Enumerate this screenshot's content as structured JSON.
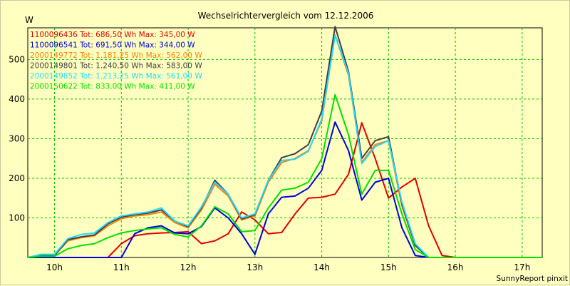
{
  "chart_data": {
    "type": "line",
    "title": "Wechselrichtervergleich vom 12.12.2006",
    "ylabel": "W",
    "xlabel": "",
    "ylim": [
      0,
      580
    ],
    "xlim": [
      9.6,
      17.3
    ],
    "yticks": [
      100,
      200,
      300,
      400,
      500
    ],
    "xticks": [
      10,
      11,
      12,
      13,
      14,
      15,
      16,
      17
    ],
    "xtick_labels": [
      "10h",
      "11h",
      "12h",
      "13h",
      "14h",
      "15h",
      "16h",
      "17h"
    ],
    "grid": true,
    "legend_position": "top-left",
    "footer": "SunnyReport pinxit",
    "series": [
      {
        "name": "1100096436",
        "label": "1100096436 Tot: 686,50 Wh Max: 345,00 W",
        "color": "#e00000",
        "x": [
          9.6,
          9.8,
          10.0,
          10.2,
          10.4,
          10.6,
          10.8,
          11.0,
          11.2,
          11.4,
          11.6,
          11.8,
          12.0,
          12.2,
          12.4,
          12.6,
          12.8,
          13.0,
          13.2,
          13.4,
          13.6,
          13.8,
          14.0,
          14.2,
          14.4,
          14.6,
          14.8,
          15.0,
          15.2,
          15.4,
          15.6,
          15.8,
          16.0,
          16.2,
          16.4,
          16.6,
          16.8,
          17.0,
          17.2,
          17.3
        ],
        "y": [
          0,
          0,
          0,
          0,
          0,
          0,
          0,
          35,
          55,
          60,
          62,
          63,
          65,
          35,
          42,
          60,
          115,
          95,
          60,
          63,
          110,
          150,
          152,
          160,
          210,
          340,
          250,
          150,
          178,
          200,
          80,
          5,
          0,
          0,
          0,
          0,
          0,
          0,
          0,
          0
        ]
      },
      {
        "name": "1100096541",
        "label": "1100096541 Tot: 691,50 Wh Max: 344,00 W",
        "color": "#0000e0",
        "x": [
          9.6,
          9.8,
          10.0,
          10.2,
          10.4,
          10.6,
          10.8,
          11.0,
          11.2,
          11.4,
          11.6,
          11.8,
          12.0,
          12.2,
          12.4,
          12.6,
          12.8,
          13.0,
          13.2,
          13.4,
          13.6,
          13.8,
          14.0,
          14.2,
          14.4,
          14.6,
          14.8,
          15.0,
          15.2,
          15.4,
          15.6,
          15.8,
          16.0,
          16.2,
          16.4,
          16.6,
          16.8,
          17.0,
          17.2,
          17.3
        ],
        "y": [
          0,
          0,
          0,
          0,
          0,
          0,
          0,
          0,
          60,
          75,
          80,
          62,
          60,
          78,
          125,
          100,
          60,
          8,
          110,
          152,
          155,
          175,
          220,
          342,
          270,
          145,
          190,
          200,
          75,
          5,
          0,
          0,
          0,
          0,
          0,
          0,
          0,
          0,
          0,
          0
        ]
      },
      {
        "name": "2000149772",
        "label": "2000149772 Tot: 1.181,25 Wh Max: 562,00 W",
        "color": "#ff8000",
        "x": [
          9.6,
          9.8,
          10.0,
          10.2,
          10.4,
          10.6,
          10.8,
          11.0,
          11.2,
          11.4,
          11.6,
          11.8,
          12.0,
          12.2,
          12.4,
          12.6,
          12.8,
          13.0,
          13.2,
          13.4,
          13.6,
          13.8,
          14.0,
          14.2,
          14.4,
          14.6,
          14.8,
          15.0,
          15.2,
          15.4,
          15.6,
          15.8,
          16.0,
          16.2,
          16.4,
          16.6,
          16.8,
          17.0,
          17.2,
          17.3
        ],
        "y": [
          0,
          5,
          5,
          42,
          50,
          55,
          80,
          98,
          105,
          108,
          115,
          88,
          75,
          120,
          185,
          155,
          95,
          105,
          190,
          240,
          250,
          270,
          345,
          562,
          460,
          240,
          285,
          295,
          130,
          30,
          0,
          0,
          0,
          0,
          0,
          0,
          0,
          0,
          0,
          0
        ]
      },
      {
        "name": "2000149801",
        "label": "2000149801 Tot: 1.240,50 Wh Max: 583,00 W",
        "color": "#404040",
        "x": [
          9.6,
          9.8,
          10.0,
          10.2,
          10.4,
          10.6,
          10.8,
          11.0,
          11.2,
          11.4,
          11.6,
          11.8,
          12.0,
          12.2,
          12.4,
          12.6,
          12.8,
          13.0,
          13.2,
          13.4,
          13.6,
          13.8,
          14.0,
          14.2,
          14.4,
          14.6,
          14.8,
          15.0,
          15.2,
          15.4,
          15.6,
          15.8,
          16.0,
          16.2,
          16.4,
          16.6,
          16.8,
          17.0,
          17.2,
          17.3
        ],
        "y": [
          0,
          5,
          5,
          45,
          52,
          57,
          85,
          102,
          108,
          112,
          120,
          92,
          78,
          125,
          195,
          160,
          97,
          108,
          195,
          252,
          262,
          285,
          370,
          583,
          470,
          250,
          295,
          305,
          135,
          30,
          0,
          0,
          0,
          0,
          0,
          0,
          0,
          0,
          0,
          0
        ]
      },
      {
        "name": "2000149852",
        "label": "2000149852 Tot: 1.213,25 Wh Max: 561,00 W",
        "color": "#20d8ff",
        "x": [
          9.6,
          9.8,
          10.0,
          10.2,
          10.4,
          10.6,
          10.8,
          11.0,
          11.2,
          11.4,
          11.6,
          11.8,
          12.0,
          12.2,
          12.4,
          12.6,
          12.8,
          13.0,
          13.2,
          13.4,
          13.6,
          13.8,
          14.0,
          14.2,
          14.4,
          14.6,
          14.8,
          15.0,
          15.2,
          15.4,
          15.6,
          15.8,
          16.0,
          16.2,
          16.4,
          16.6,
          16.8,
          17.0,
          17.2,
          17.3
        ],
        "y": [
          0,
          8,
          8,
          48,
          58,
          62,
          88,
          105,
          110,
          115,
          125,
          92,
          80,
          128,
          190,
          160,
          100,
          110,
          195,
          245,
          248,
          268,
          350,
          561,
          465,
          237,
          280,
          295,
          140,
          35,
          0,
          0,
          0,
          0,
          0,
          0,
          0,
          0,
          0,
          0
        ]
      },
      {
        "name": "2000150622",
        "label": "2000150622 Tot: 833,00 Wh Max: 411,00 W",
        "color": "#00e000",
        "x": [
          9.6,
          9.8,
          10.0,
          10.2,
          10.4,
          10.6,
          10.8,
          11.0,
          11.2,
          11.4,
          11.6,
          11.8,
          12.0,
          12.2,
          12.4,
          12.6,
          12.8,
          13.0,
          13.2,
          13.4,
          13.6,
          13.8,
          14.0,
          14.2,
          14.4,
          14.6,
          14.8,
          15.0,
          15.2,
          15.4,
          15.6,
          15.8,
          16.0,
          16.2,
          16.4,
          16.6,
          16.8,
          17.0,
          17.2,
          17.3
        ],
        "y": [
          0,
          3,
          3,
          22,
          30,
          35,
          50,
          62,
          68,
          72,
          75,
          58,
          52,
          80,
          128,
          110,
          65,
          68,
          125,
          170,
          175,
          190,
          250,
          411,
          310,
          160,
          220,
          220,
          110,
          20,
          0,
          0,
          0,
          0,
          0,
          0,
          0,
          0,
          0,
          0
        ]
      }
    ]
  }
}
